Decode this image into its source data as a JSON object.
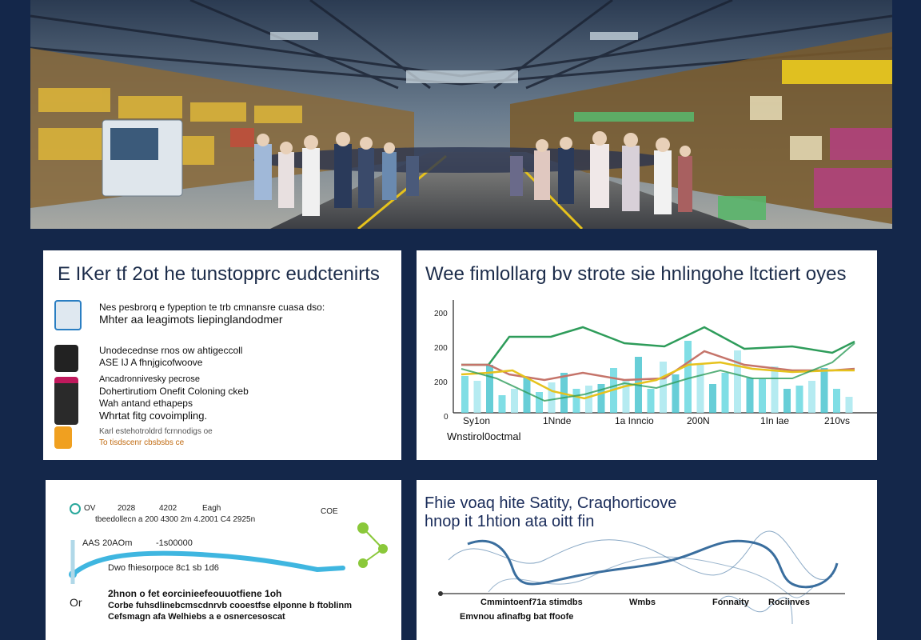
{
  "panel1": {
    "title": "E IKer tf 2ot he tunstopprc eudctenirts",
    "features": [
      {
        "icon": "kiosk-icon",
        "color": "#2a7ec2",
        "lines": [
          "Nes pesbrorq e fypeption te trb cmnansre cuasa dso:",
          "Mhter aa leagimots liepinglandodmer"
        ]
      },
      {
        "icon": "device-icon",
        "color": "#222222",
        "lines": [
          "Unodecednse rnos ow ahtigeccoll",
          "ASE IJ A fhnjgicofwoove"
        ]
      },
      {
        "icon": "charging-station-icon",
        "color": "#c0195c",
        "lines": [
          "Ancadronnivesky pecrose",
          "Dohertirutiom Onefit Coloning ckeb",
          "Wah antand ethapeps",
          "Whrtat fitg covoimpling."
        ]
      },
      {
        "icon": "battery-icon",
        "color": "#f0a020",
        "lines": [
          "Karl estehotroldrd fcrnnodigs oe",
          "To tisdscenr cbsbsbs ce"
        ]
      }
    ]
  },
  "panel2": {
    "title": "Wee fimlollarg bv strote sie hnlingohe ltctiert oyes",
    "footer_label": "Wnstirol0octmal",
    "chart_data": {
      "type": "bar",
      "y_ticks": [
        "0",
        "200",
        "200",
        "200"
      ],
      "x_ticks": [
        "Sy1on",
        "1Nnde",
        "1a Inncio",
        "200N",
        "1In lae",
        "210vs"
      ],
      "series": [
        {
          "color": "#2e9c5a"
        },
        {
          "color": "#c5746a"
        },
        {
          "color": "#e6c21c"
        },
        {
          "color": "#7aa4c8"
        }
      ]
    }
  },
  "panel3": {
    "header": [
      "OV",
      "2028",
      "4202",
      "Eagh",
      "COE"
    ],
    "subheader": "tbeedollecn a 200 4300 2m 4.2001 C4 2925n",
    "line_label_left": "AAS 20AOm",
    "line_label_right": "-1s00000",
    "sub_label": "Dwo fhiesorpoce 8c1 sb 1d6",
    "text_label": "Or",
    "desc": [
      "2hnon o fet eorcinieefeouuotfiene 1oh",
      "Corbe fuhsdlinebcmscdnrvb cooestfse elponne b ftoblinm",
      "Cefsmagn afa Welhiebs a e osnercesoscat"
    ]
  },
  "panel4": {
    "title_lines": [
      "Fhie voaq hite Satity, Craqhorticove",
      "hnop it 1htion ata oitt fin"
    ],
    "x_labels": [
      "Cmmintoenf71a  stimdbs",
      "Wmbs",
      "Fonnaity",
      "Rociinves"
    ],
    "footer_text": "Emvnou afinafbg bat ffoofe",
    "line_color": "#3a6e9e"
  }
}
